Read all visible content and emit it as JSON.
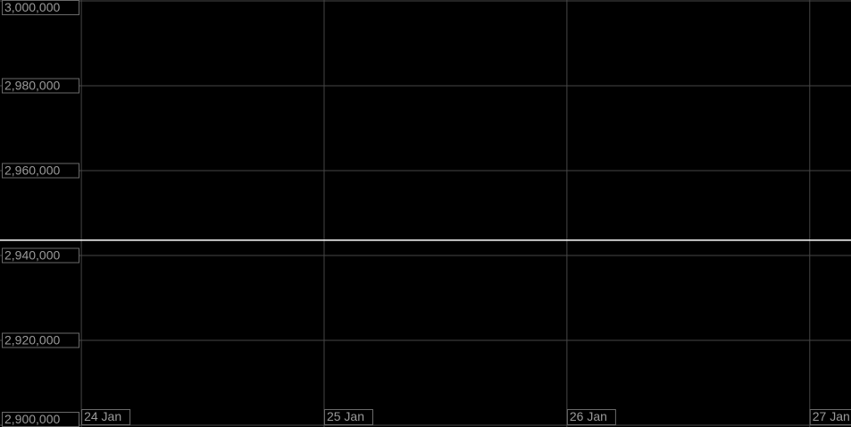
{
  "chart_data": {
    "type": "line",
    "xlim": [
      -0.335,
      3.17
    ],
    "xticks": [
      {
        "value": 0,
        "label": "24 Jan"
      },
      {
        "value": 1,
        "label": "25 Jan"
      },
      {
        "value": 2,
        "label": "26 Jan"
      },
      {
        "value": 3,
        "label": "27 Jan"
      }
    ],
    "ylim": [
      2900000,
      3000000
    ],
    "yticks": [
      {
        "value": 2900000,
        "label": "2,900,000"
      },
      {
        "value": 2920000,
        "label": "2,920,000"
      },
      {
        "value": 2940000,
        "label": "2,940,000"
      },
      {
        "value": 2960000,
        "label": "2,960,000"
      },
      {
        "value": 2980000,
        "label": "2,980,000"
      },
      {
        "value": 3000000,
        "label": "3,000,000"
      }
    ],
    "grid": true,
    "series": [
      {
        "color": "#ffffff",
        "x": [
          -0.335,
          3.17
        ],
        "values": [
          2943600,
          2943600
        ]
      }
    ]
  }
}
